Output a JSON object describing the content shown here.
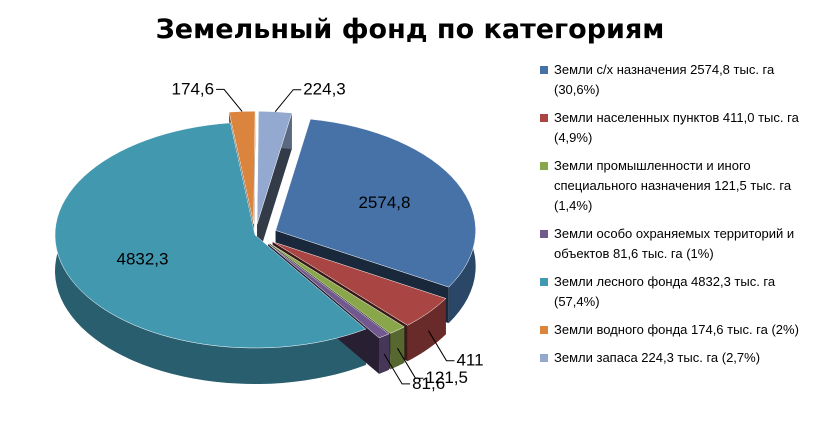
{
  "chart_data": {
    "type": "pie",
    "title": "Земельный фонд по категориям",
    "slices": [
      {
        "name": "Земли с/х назначения",
        "value": 2574.8,
        "label": "2574,8",
        "legend": "Земли с/х назначения 2574,8 тыс. га (30,6%)",
        "color": "#4672A8",
        "exploded": true
      },
      {
        "name": "Земли населенных пунктов",
        "value": 411.0,
        "label": "411",
        "legend": "Земли населенных пунктов 411,0 тыс. га (4,9%)",
        "color": "#A94643",
        "exploded": true
      },
      {
        "name": "Земли промышленности и иного специального назначения",
        "value": 121.5,
        "label": "121,5",
        "legend": "Земли промышленности и иного специального назначения 121,5 тыс. га (1,4%)",
        "color": "#8AA64B",
        "exploded": true
      },
      {
        "name": "Земли особо охраняемых территорий и объектов",
        "value": 81.6,
        "label": "81,6",
        "legend": "Земли особо охраняемых территорий и объектов 81,6 тыс. га (1%)",
        "color": "#71588F",
        "exploded": true
      },
      {
        "name": "Земли лесного фонда",
        "value": 4832.3,
        "label": "4832,3",
        "legend": "Земли лесного фонда 4832,3 тыс. га (57,4%)",
        "color": "#4198AF",
        "exploded": false
      },
      {
        "name": "Земли водного фонда",
        "value": 174.6,
        "label": "174,6",
        "legend": "Земли водного фонда 174,6 тыс. га (2%)",
        "color": "#DB843D",
        "exploded": true
      },
      {
        "name": "Земли запаса",
        "value": 224.3,
        "label": "224,3",
        "legend": "Земли запаса 224,3 тыс. га (2,7%)",
        "color": "#93A9CF",
        "exploded": true
      }
    ],
    "legend_position": "right"
  }
}
